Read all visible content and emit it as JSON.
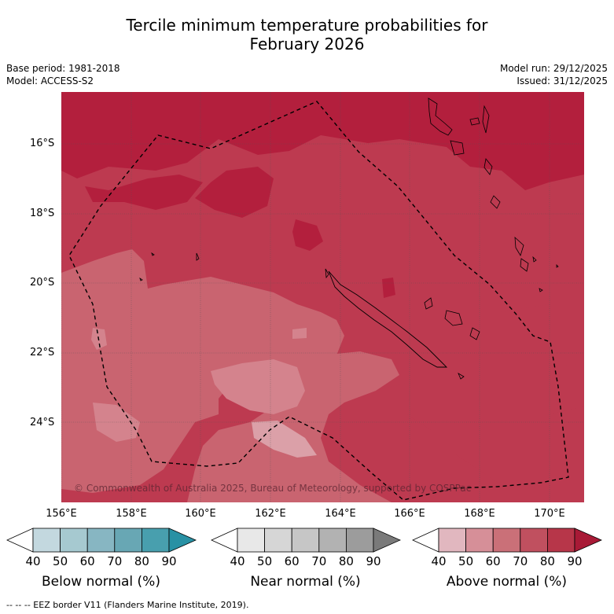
{
  "title": {
    "line1": "Tercile minimum temperature probabilities for",
    "line2": "February 2026"
  },
  "info": {
    "base_period": "Base period: 1981-2018",
    "model": "Model: ACCESS-S2",
    "model_run": "Model run: 29/12/2025",
    "issued": "Issued: 31/12/2025"
  },
  "axes": {
    "lat_labels": [
      "16°S",
      "18°S",
      "20°S",
      "22°S",
      "24°S"
    ],
    "lon_labels": [
      "156°E",
      "158°E",
      "160°E",
      "162°E",
      "164°E",
      "166°E",
      "168°E",
      "170°E"
    ]
  },
  "map_regions": {
    "eez": "EEZ border V11 (Flanders Marine Institute, 2019)",
    "land": "New Caledonia, Loyalty Islands and Vanuatu coastlines",
    "dominant_category": "Above normal",
    "colors": {
      "above_60_70": "#c96470",
      "above_70_80": "#bd3a50",
      "above_80_90": "#b31f3d",
      "above_50_60": "#d4838d"
    }
  },
  "copyright": "© Commonwealth of Australia 2025, Bureau of Meteorology, supported by COSPPac",
  "legends": [
    {
      "name": "below",
      "label": "Below normal (%)",
      "ticks": [
        "40",
        "50",
        "60",
        "70",
        "80",
        "90"
      ],
      "colors": [
        "#ffffff",
        "#c3d8df",
        "#a6c9d0",
        "#87b6c2",
        "#68a7b4",
        "#489fae",
        "#2891a4"
      ]
    },
    {
      "name": "near",
      "label": "Near normal (%)",
      "ticks": [
        "40",
        "50",
        "60",
        "70",
        "80",
        "90"
      ],
      "colors": [
        "#ffffff",
        "#e8e8e8",
        "#d6d6d6",
        "#c6c6c6",
        "#b2b2b2",
        "#9c9c9c",
        "#7a7a7a"
      ]
    },
    {
      "name": "above",
      "label": "Above normal (%)",
      "ticks": [
        "40",
        "50",
        "60",
        "70",
        "80",
        "90"
      ],
      "colors": [
        "#ffffff",
        "#e1b7bf",
        "#d68f98",
        "#ca7078",
        "#c0505f",
        "#b73649",
        "#a81a36"
      ]
    }
  ],
  "footnote": "--  --  -- EEZ border V11 (Flanders Marine Institute, 2019)."
}
